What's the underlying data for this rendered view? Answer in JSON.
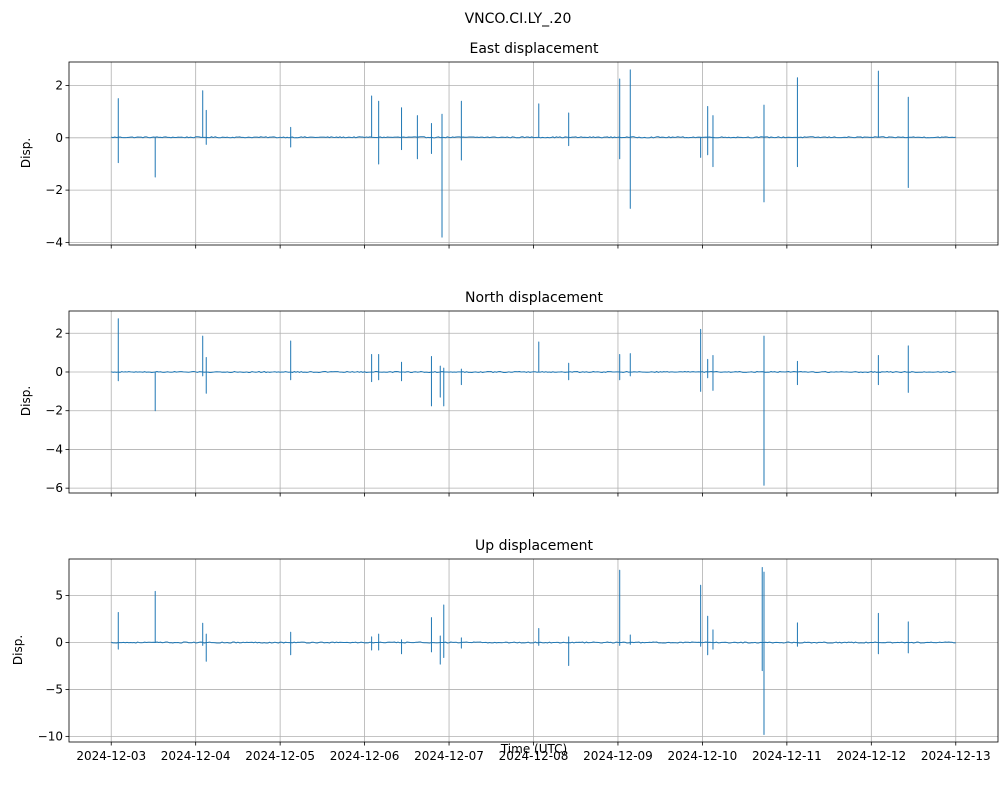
{
  "figure": {
    "suptitle": "VNCO.CI.LY_.20",
    "xlabel": "Time (UTC)",
    "line_color": "#1f77b4",
    "grid_color": "#b0b0b0"
  },
  "chart_data": [
    {
      "type": "line",
      "title": "East displacement",
      "xlabel": "",
      "ylabel": "Disp.",
      "x_type": "date",
      "xlim": [
        "2024-12-02T12:00",
        "2024-12-13T12:00"
      ],
      "ylim": [
        -4.1,
        2.9
      ],
      "grid": true,
      "baseline": 0.02,
      "x_ticks": [
        "2024-12-03",
        "2024-12-04",
        "2024-12-05",
        "2024-12-06",
        "2024-12-07",
        "2024-12-08",
        "2024-12-09",
        "2024-12-10",
        "2024-12-11",
        "2024-12-12",
        "2024-12-13"
      ],
      "y_ticks": [
        2,
        0,
        -2,
        -4
      ],
      "series": [
        {
          "range": [
            "2024-12-03T00:00",
            "2024-12-13T00:00"
          ],
          "spikes": [
            {
              "t": "2024-12-03T02:00",
              "hi": 1.5,
              "lo": -0.95
            },
            {
              "t": "2024-12-03T12:30",
              "hi": 0.0,
              "lo": -1.5
            },
            {
              "t": "2024-12-04T02:00",
              "hi": 1.8,
              "lo": 0.0
            },
            {
              "t": "2024-12-04T03:00",
              "hi": 1.05,
              "lo": -0.25
            },
            {
              "t": "2024-12-05T03:00",
              "hi": 0.4,
              "lo": -0.35
            },
            {
              "t": "2024-12-06T02:00",
              "hi": 1.6,
              "lo": 0.0
            },
            {
              "t": "2024-12-06T04:00",
              "hi": 1.4,
              "lo": -1.0
            },
            {
              "t": "2024-12-06T10:30",
              "hi": 1.15,
              "lo": -0.45
            },
            {
              "t": "2024-12-06T15:00",
              "hi": 0.85,
              "lo": -0.8
            },
            {
              "t": "2024-12-06T19:00",
              "hi": 0.55,
              "lo": -0.6
            },
            {
              "t": "2024-12-06T22:00",
              "hi": 0.9,
              "lo": -3.8
            },
            {
              "t": "2024-12-07T03:30",
              "hi": 1.4,
              "lo": -0.85
            },
            {
              "t": "2024-12-08T01:30",
              "hi": 1.3,
              "lo": 0.0
            },
            {
              "t": "2024-12-08T10:00",
              "hi": 0.95,
              "lo": -0.3
            },
            {
              "t": "2024-12-09T00:30",
              "hi": 2.25,
              "lo": -0.8
            },
            {
              "t": "2024-12-09T03:30",
              "hi": 2.6,
              "lo": -2.7
            },
            {
              "t": "2024-12-09T23:30",
              "hi": 0.0,
              "lo": -0.75
            },
            {
              "t": "2024-12-10T01:30",
              "hi": 1.2,
              "lo": -0.65
            },
            {
              "t": "2024-12-10T03:00",
              "hi": 0.85,
              "lo": -1.1
            },
            {
              "t": "2024-12-10T17:30",
              "hi": 1.25,
              "lo": -2.45
            },
            {
              "t": "2024-12-11T03:00",
              "hi": 2.3,
              "lo": -1.1
            },
            {
              "t": "2024-12-12T02:00",
              "hi": 2.55,
              "lo": 0.0
            },
            {
              "t": "2024-12-12T10:30",
              "hi": 1.55,
              "lo": -1.9
            }
          ]
        }
      ]
    },
    {
      "type": "line",
      "title": "North displacement",
      "xlabel": "",
      "ylabel": "Disp.",
      "x_type": "date",
      "xlim": [
        "2024-12-02T12:00",
        "2024-12-13T12:00"
      ],
      "ylim": [
        -6.25,
        3.15
      ],
      "grid": true,
      "baseline": 0.0,
      "x_ticks": [
        "2024-12-03",
        "2024-12-04",
        "2024-12-05",
        "2024-12-06",
        "2024-12-07",
        "2024-12-08",
        "2024-12-09",
        "2024-12-10",
        "2024-12-11",
        "2024-12-12",
        "2024-12-13"
      ],
      "y_ticks": [
        2,
        0,
        -2,
        -4,
        -6
      ],
      "series": [
        {
          "range": [
            "2024-12-03T00:00",
            "2024-12-13T00:00"
          ],
          "spikes": [
            {
              "t": "2024-12-03T02:00",
              "hi": 2.75,
              "lo": -0.45
            },
            {
              "t": "2024-12-03T12:30",
              "hi": 0.0,
              "lo": -2.0
            },
            {
              "t": "2024-12-04T02:00",
              "hi": 1.85,
              "lo": -0.2
            },
            {
              "t": "2024-12-04T03:00",
              "hi": 0.75,
              "lo": -1.1
            },
            {
              "t": "2024-12-05T03:00",
              "hi": 1.6,
              "lo": -0.4
            },
            {
              "t": "2024-12-06T02:00",
              "hi": 0.9,
              "lo": -0.5
            },
            {
              "t": "2024-12-06T04:00",
              "hi": 0.9,
              "lo": -0.4
            },
            {
              "t": "2024-12-06T10:30",
              "hi": 0.5,
              "lo": -0.45
            },
            {
              "t": "2024-12-06T19:00",
              "hi": 0.8,
              "lo": -1.75
            },
            {
              "t": "2024-12-06T21:30",
              "hi": 0.3,
              "lo": -1.3
            },
            {
              "t": "2024-12-06T22:30",
              "hi": 0.2,
              "lo": -1.75
            },
            {
              "t": "2024-12-07T03:30",
              "hi": 0.15,
              "lo": -0.65
            },
            {
              "t": "2024-12-08T01:30",
              "hi": 1.55,
              "lo": 0.0
            },
            {
              "t": "2024-12-08T10:00",
              "hi": 0.45,
              "lo": -0.4
            },
            {
              "t": "2024-12-09T00:30",
              "hi": 0.9,
              "lo": -0.4
            },
            {
              "t": "2024-12-09T03:30",
              "hi": 0.95,
              "lo": -0.2
            },
            {
              "t": "2024-12-09T23:30",
              "hi": 2.2,
              "lo": -1.0
            },
            {
              "t": "2024-12-10T01:30",
              "hi": 0.65,
              "lo": -0.3
            },
            {
              "t": "2024-12-10T03:00",
              "hi": 0.85,
              "lo": -0.95
            },
            {
              "t": "2024-12-10T17:30",
              "hi": 1.85,
              "lo": -5.85
            },
            {
              "t": "2024-12-11T03:00",
              "hi": 0.55,
              "lo": -0.65
            },
            {
              "t": "2024-12-12T02:00",
              "hi": 0.85,
              "lo": -0.65
            },
            {
              "t": "2024-12-12T10:30",
              "hi": 1.35,
              "lo": -1.05
            }
          ]
        }
      ]
    },
    {
      "type": "line",
      "title": "Up displacement",
      "xlabel": "Time (UTC)",
      "ylabel": "Disp.",
      "x_type": "date",
      "xlim": [
        "2024-12-02T12:00",
        "2024-12-13T12:00"
      ],
      "ylim": [
        -10.6,
        8.9
      ],
      "grid": true,
      "baseline": 0.0,
      "x_ticks": [
        "2024-12-03",
        "2024-12-04",
        "2024-12-05",
        "2024-12-06",
        "2024-12-07",
        "2024-12-08",
        "2024-12-09",
        "2024-12-10",
        "2024-12-11",
        "2024-12-12",
        "2024-12-13"
      ],
      "y_ticks": [
        5,
        0,
        -5,
        -10
      ],
      "series": [
        {
          "range": [
            "2024-12-03T00:00",
            "2024-12-13T00:00"
          ],
          "spikes": [
            {
              "t": "2024-12-03T02:00",
              "hi": 3.2,
              "lo": -0.7
            },
            {
              "t": "2024-12-03T12:30",
              "hi": 5.45,
              "lo": 0.0
            },
            {
              "t": "2024-12-04T02:00",
              "hi": 2.05,
              "lo": -0.3
            },
            {
              "t": "2024-12-04T03:00",
              "hi": 0.9,
              "lo": -2.0
            },
            {
              "t": "2024-12-05T03:00",
              "hi": 1.1,
              "lo": -1.3
            },
            {
              "t": "2024-12-06T02:00",
              "hi": 0.6,
              "lo": -0.8
            },
            {
              "t": "2024-12-06T04:00",
              "hi": 0.9,
              "lo": -0.8
            },
            {
              "t": "2024-12-06T10:30",
              "hi": 0.3,
              "lo": -1.2
            },
            {
              "t": "2024-12-06T19:00",
              "hi": 2.65,
              "lo": -1.0
            },
            {
              "t": "2024-12-06T21:30",
              "hi": 0.7,
              "lo": -2.3
            },
            {
              "t": "2024-12-06T22:30",
              "hi": 4.0,
              "lo": -1.6
            },
            {
              "t": "2024-12-07T03:30",
              "hi": 0.5,
              "lo": -0.6
            },
            {
              "t": "2024-12-08T01:30",
              "hi": 1.5,
              "lo": -0.3
            },
            {
              "t": "2024-12-08T10:00",
              "hi": 0.6,
              "lo": -2.45
            },
            {
              "t": "2024-12-09T00:30",
              "hi": 7.7,
              "lo": -0.3
            },
            {
              "t": "2024-12-09T03:30",
              "hi": 0.8,
              "lo": -0.2
            },
            {
              "t": "2024-12-09T23:30",
              "hi": 6.1,
              "lo": -0.4
            },
            {
              "t": "2024-12-10T01:30",
              "hi": 2.8,
              "lo": -1.3
            },
            {
              "t": "2024-12-10T03:00",
              "hi": 1.35,
              "lo": -0.7
            },
            {
              "t": "2024-12-10T17:00",
              "hi": 8.0,
              "lo": -3.0
            },
            {
              "t": "2024-12-10T17:30",
              "hi": 7.5,
              "lo": -9.8
            },
            {
              "t": "2024-12-11T03:00",
              "hi": 2.1,
              "lo": -0.4
            },
            {
              "t": "2024-12-12T02:00",
              "hi": 3.1,
              "lo": -1.2
            },
            {
              "t": "2024-12-12T10:30",
              "hi": 2.2,
              "lo": -1.1
            }
          ]
        }
      ]
    }
  ]
}
